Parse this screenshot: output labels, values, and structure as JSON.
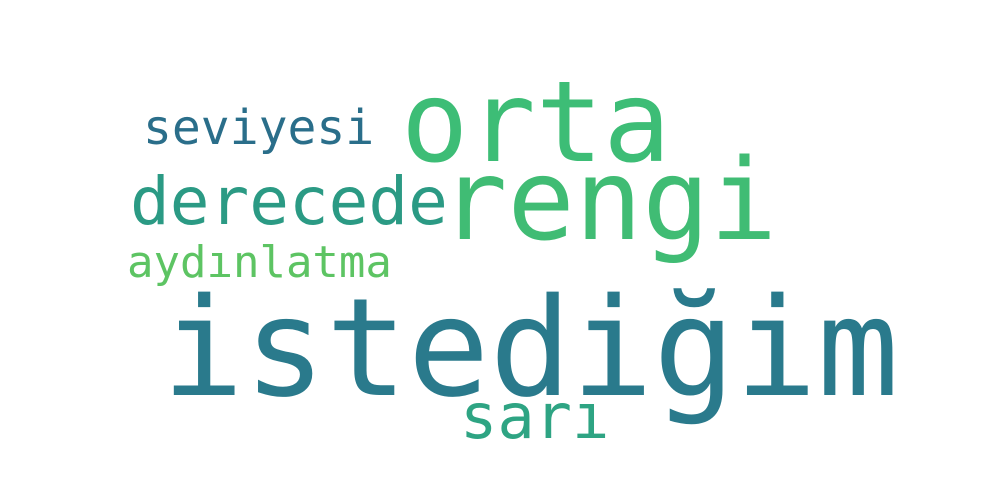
{
  "word_cloud": {
    "background": "#ffffff",
    "words": [
      {
        "text": "istediğim",
        "color": "#2a7a8c"
      },
      {
        "text": "orta",
        "color": "#3dbd76"
      },
      {
        "text": "rengi",
        "color": "#40bc74"
      },
      {
        "text": "derecede",
        "color": "#2b9a84"
      },
      {
        "text": "seviyesi",
        "color": "#2a6e8a"
      },
      {
        "text": "aydınlatma",
        "color": "#5dc463"
      },
      {
        "text": "sarı",
        "color": "#2ea483"
      }
    ]
  }
}
